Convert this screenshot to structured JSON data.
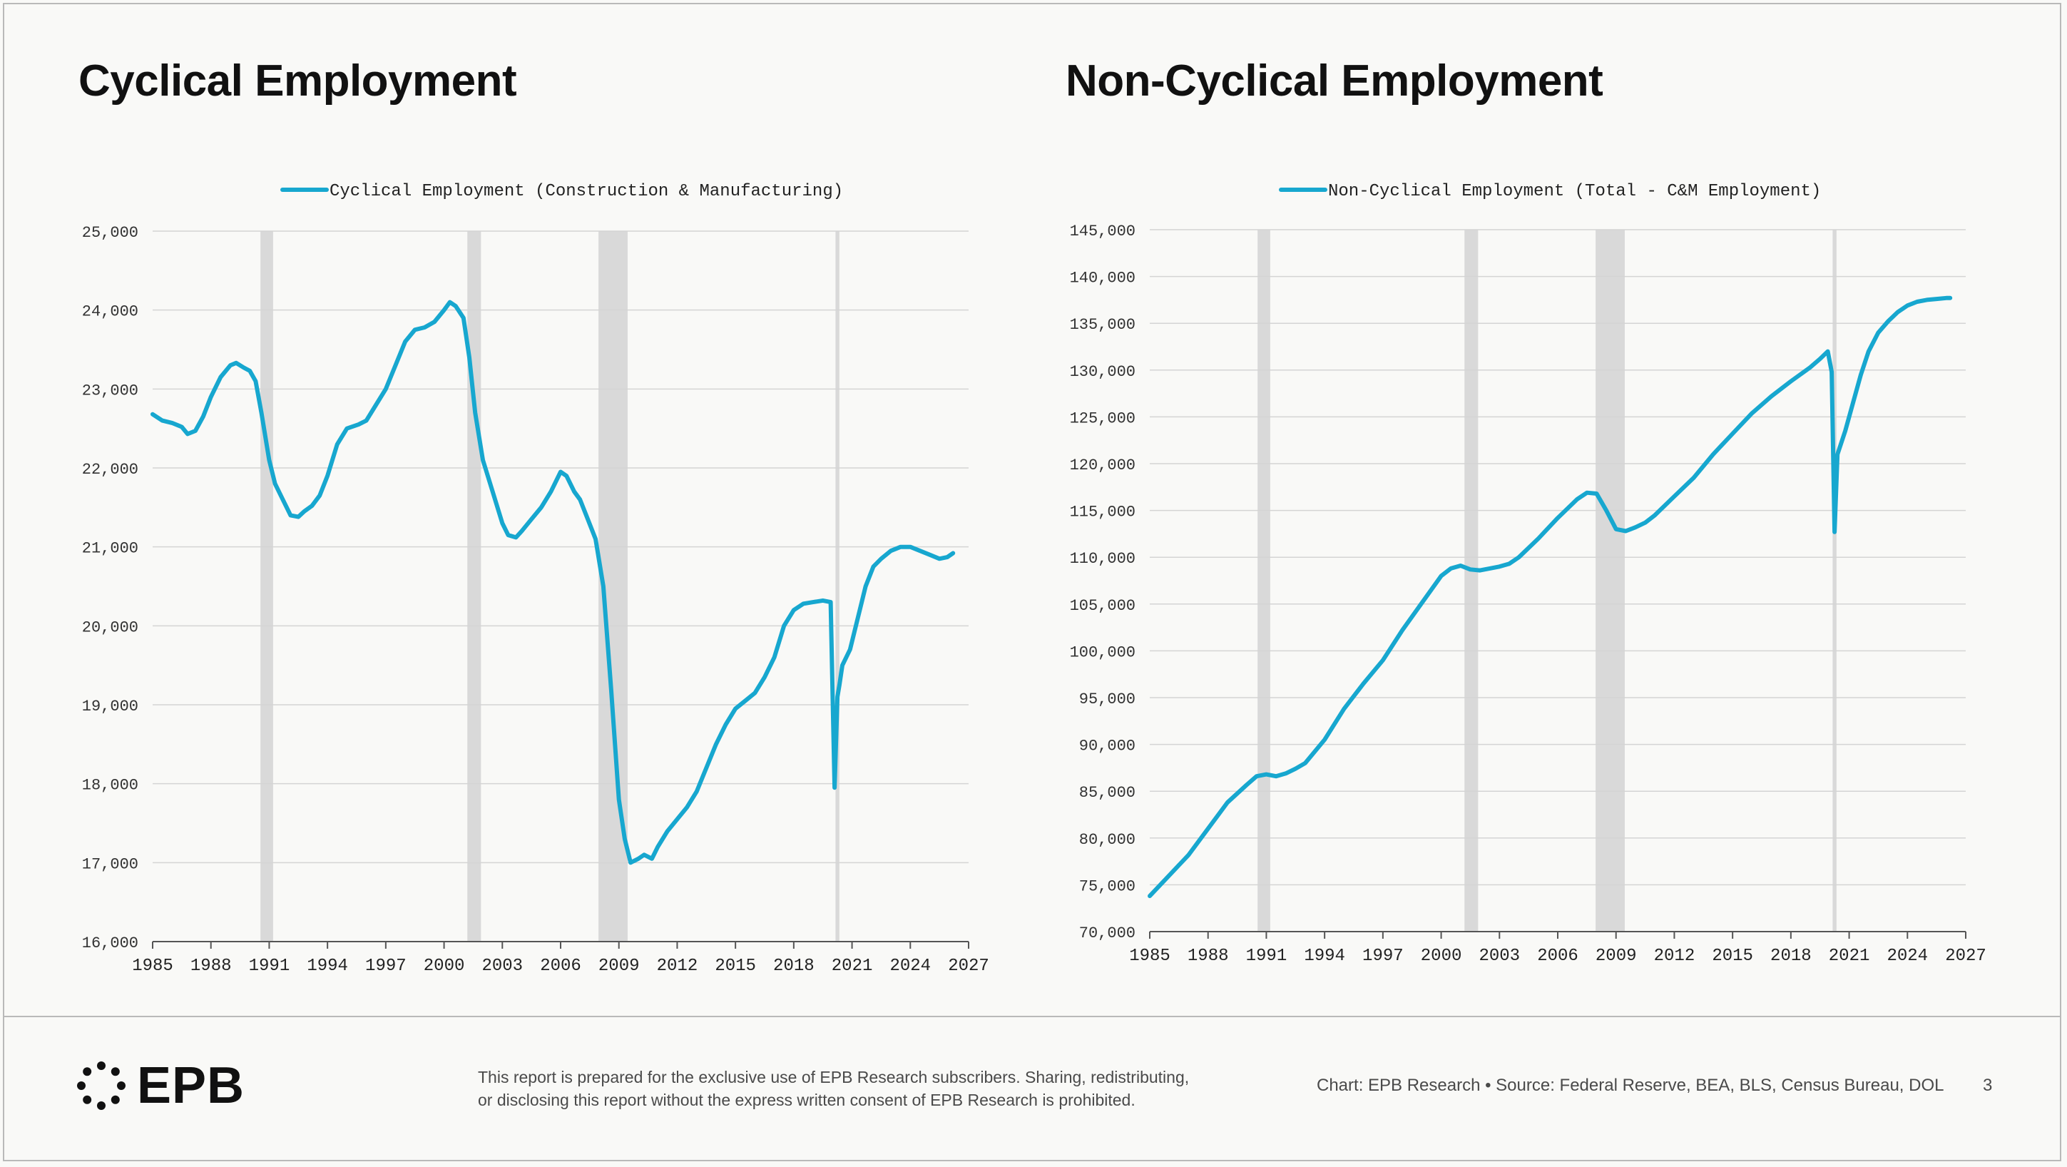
{
  "slide": {
    "left_title": "Cyclical Employment",
    "right_title": "Non-Cyclical Employment",
    "logo_text": "EPB",
    "disclaimer_line1": "This report is prepared for the exclusive use of EPB Research subscribers. Sharing, redistributing,",
    "disclaimer_line2": "or disclosing this report without the express written consent of EPB Research is prohibited.",
    "source": "Chart: EPB Research  •  Source: Federal Reserve, BEA, BLS, Census Bureau, DOL",
    "page_number": "3"
  },
  "colors": {
    "line": "#17a7cf",
    "recession": "#d9d9d9",
    "grid": "#d4d4d4",
    "axis": "#555555"
  },
  "chart_data": [
    {
      "type": "line",
      "title": "Cyclical Employment",
      "legend": "Cyclical Employment (Construction & Manufacturing)",
      "legend_position": "top-center",
      "xlabel": "",
      "ylabel": "",
      "xlim": [
        1985,
        2027
      ],
      "ylim": [
        16000,
        25000
      ],
      "xticks": [
        1985,
        1988,
        1991,
        1994,
        1997,
        2000,
        2003,
        2006,
        2009,
        2012,
        2015,
        2018,
        2021,
        2024,
        2027
      ],
      "yticks": [
        16000,
        17000,
        18000,
        19000,
        20000,
        21000,
        22000,
        23000,
        24000,
        25000
      ],
      "recessions": [
        [
          1990.55,
          1991.2
        ],
        [
          2001.2,
          2001.9
        ],
        [
          2007.95,
          2009.45
        ],
        [
          2020.15,
          2020.35
        ]
      ],
      "series": [
        {
          "name": "Cyclical Employment (Construction & Manufacturing)",
          "x": [
            1985,
            1985.5,
            1986,
            1986.5,
            1986.8,
            1987.2,
            1987.6,
            1988,
            1988.5,
            1989,
            1989.3,
            1989.7,
            1990,
            1990.3,
            1990.6,
            1991,
            1991.3,
            1991.7,
            1992.1,
            1992.5,
            1992.8,
            1993.2,
            1993.6,
            1994,
            1994.5,
            1995,
            1995.6,
            1996,
            1996.5,
            1997,
            1997.5,
            1998,
            1998.5,
            1999,
            1999.5,
            2000,
            2000.3,
            2000.6,
            2001,
            2001.3,
            2001.6,
            2002,
            2002.5,
            2003,
            2003.3,
            2003.7,
            2004,
            2004.5,
            2005,
            2005.5,
            2006,
            2006.3,
            2006.7,
            2007,
            2007.4,
            2007.8,
            2008.2,
            2008.6,
            2009,
            2009.3,
            2009.6,
            2010,
            2010.3,
            2010.7,
            2011,
            2011.5,
            2012,
            2012.5,
            2013,
            2013.5,
            2014,
            2014.5,
            2015,
            2015.5,
            2016,
            2016.5,
            2017,
            2017.5,
            2018,
            2018.5,
            2019,
            2019.5,
            2019.9,
            2020.1,
            2020.25,
            2020.35,
            2020.5,
            2020.9,
            2021.3,
            2021.7,
            2022.1,
            2022.5,
            2023,
            2023.5,
            2024,
            2024.5,
            2025,
            2025.5,
            2025.9,
            2026.2
          ],
          "values": [
            22680,
            22600,
            22570,
            22520,
            22430,
            22470,
            22650,
            22900,
            23150,
            23300,
            23330,
            23270,
            23230,
            23100,
            22700,
            22100,
            21800,
            21600,
            21400,
            21380,
            21450,
            21520,
            21650,
            21900,
            22300,
            22500,
            22550,
            22600,
            22800,
            23000,
            23300,
            23600,
            23750,
            23780,
            23850,
            24000,
            24100,
            24050,
            23900,
            23400,
            22700,
            22100,
            21700,
            21300,
            21150,
            21120,
            21200,
            21350,
            21500,
            21700,
            21950,
            21900,
            21700,
            21600,
            21350,
            21100,
            20500,
            19200,
            17800,
            17300,
            17000,
            17050,
            17100,
            17050,
            17200,
            17400,
            17550,
            17700,
            17900,
            18200,
            18500,
            18750,
            18950,
            19050,
            19150,
            19350,
            19600,
            20000,
            20200,
            20280,
            20300,
            20320,
            20300,
            17950,
            19100,
            19250,
            19500,
            19700,
            20100,
            20500,
            20750,
            20850,
            20950,
            21000,
            21000,
            20950,
            20900,
            20850,
            20870,
            20920
          ]
        }
      ]
    },
    {
      "type": "line",
      "title": "Non-Cyclical Employment",
      "legend": "Non-Cyclical Employment (Total - C&M Employment)",
      "legend_position": "top-center",
      "xlabel": "",
      "ylabel": "",
      "xlim": [
        1985,
        2027
      ],
      "ylim": [
        70000,
        145000
      ],
      "xticks": [
        1985,
        1988,
        1991,
        1994,
        1997,
        2000,
        2003,
        2006,
        2009,
        2012,
        2015,
        2018,
        2021,
        2024,
        2027
      ],
      "yticks": [
        70000,
        75000,
        80000,
        85000,
        90000,
        95000,
        100000,
        105000,
        110000,
        115000,
        120000,
        125000,
        130000,
        135000,
        140000,
        145000
      ],
      "recessions": [
        [
          1990.55,
          1991.2
        ],
        [
          2001.2,
          2001.9
        ],
        [
          2007.95,
          2009.45
        ],
        [
          2020.15,
          2020.35
        ]
      ],
      "series": [
        {
          "name": "Non-Cyclical Employment (Total - C&M Employment)",
          "x": [
            1985,
            1986,
            1987,
            1988,
            1989,
            1990,
            1990.5,
            1991,
            1991.5,
            1992,
            1992.5,
            1993,
            1994,
            1995,
            1996,
            1997,
            1998,
            1999,
            2000,
            2000.5,
            2001,
            2001.5,
            2002,
            2002.5,
            2003,
            2003.5,
            2004,
            2005,
            2006,
            2007,
            2007.5,
            2008,
            2008.5,
            2009,
            2009.5,
            2010,
            2010.5,
            2011,
            2012,
            2013,
            2014,
            2015,
            2016,
            2017,
            2018,
            2019,
            2019.5,
            2019.9,
            2020.1,
            2020.25,
            2020.4,
            2020.8,
            2021.2,
            2021.6,
            2022,
            2022.5,
            2023,
            2023.5,
            2024,
            2024.5,
            2025,
            2025.5,
            2026,
            2026.2
          ],
          "values": [
            73800,
            76000,
            78200,
            81000,
            83800,
            85700,
            86600,
            86800,
            86600,
            86900,
            87400,
            88000,
            90500,
            93800,
            96500,
            99000,
            102200,
            105100,
            108000,
            108800,
            109100,
            108700,
            108600,
            108800,
            109000,
            109300,
            110000,
            112000,
            114200,
            116200,
            116900,
            116800,
            115000,
            113000,
            112800,
            113200,
            113700,
            114500,
            116500,
            118500,
            121000,
            123200,
            125400,
            127200,
            128800,
            130300,
            131200,
            132000,
            129800,
            112700,
            121000,
            123500,
            126500,
            129500,
            132000,
            134000,
            135200,
            136200,
            136900,
            137300,
            137500,
            137600,
            137700,
            137700
          ]
        }
      ]
    }
  ]
}
